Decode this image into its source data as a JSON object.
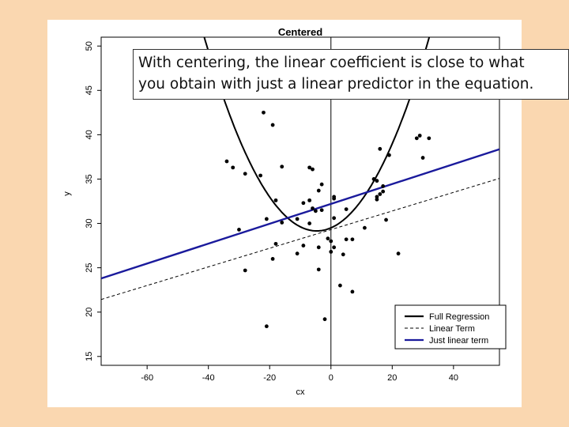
{
  "chart_data": {
    "type": "scatter",
    "title": "Centered",
    "xlabel": "cx",
    "ylabel": "y",
    "xlim": [
      -75,
      55
    ],
    "ylim": [
      14,
      51
    ],
    "xticks": [
      "-60",
      "-40",
      "-20",
      "0",
      "20",
      "40"
    ],
    "yticks": [
      "15",
      "20",
      "25",
      "30",
      "35",
      "40",
      "45",
      "50"
    ],
    "points": [
      [
        -34,
        37.0
      ],
      [
        -32,
        36.3
      ],
      [
        -30,
        29.3
      ],
      [
        -28,
        35.6
      ],
      [
        -28,
        24.7
      ],
      [
        -23,
        35.4
      ],
      [
        -22,
        42.5
      ],
      [
        -21,
        30.5
      ],
      [
        -21,
        18.4
      ],
      [
        -19,
        41.1
      ],
      [
        -19,
        26.0
      ],
      [
        -18,
        32.6
      ],
      [
        -18,
        27.7
      ],
      [
        -16,
        36.4
      ],
      [
        -16,
        30.1
      ],
      [
        -11,
        30.5
      ],
      [
        -11,
        26.6
      ],
      [
        -9,
        32.3
      ],
      [
        -9,
        27.5
      ],
      [
        -7,
        36.3
      ],
      [
        -7,
        32.6
      ],
      [
        -7,
        30.0
      ],
      [
        -6,
        36.1
      ],
      [
        -6,
        31.7
      ],
      [
        -5,
        31.4
      ],
      [
        -4,
        33.7
      ],
      [
        -4,
        27.3
      ],
      [
        -4,
        24.8
      ],
      [
        -3,
        34.4
      ],
      [
        -3,
        31.5
      ],
      [
        -2,
        19.2
      ],
      [
        -1,
        28.3
      ],
      [
        0,
        28.0
      ],
      [
        0,
        26.8
      ],
      [
        1,
        33.0
      ],
      [
        1,
        32.8
      ],
      [
        1,
        30.6
      ],
      [
        1,
        27.3
      ],
      [
        3,
        23.0
      ],
      [
        4,
        26.5
      ],
      [
        5,
        31.6
      ],
      [
        5,
        28.2
      ],
      [
        7,
        28.2
      ],
      [
        7,
        22.3
      ],
      [
        11,
        29.5
      ],
      [
        14,
        35.0
      ],
      [
        15,
        34.8
      ],
      [
        15,
        33.0
      ],
      [
        15,
        32.7
      ],
      [
        16,
        33.3
      ],
      [
        16,
        38.4
      ],
      [
        17,
        33.6
      ],
      [
        17,
        34.2
      ],
      [
        18,
        30.4
      ],
      [
        19,
        37.7
      ],
      [
        22,
        26.6
      ],
      [
        28,
        39.6
      ],
      [
        29,
        39.9
      ],
      [
        30,
        37.4
      ],
      [
        32,
        39.6
      ]
    ],
    "series": [
      {
        "kind": "curve",
        "a": 0.0162,
        "b": 0.15,
        "c": 29.5,
        "color": "#000000",
        "dash": "none",
        "width": 2
      },
      {
        "kind": "line",
        "slope": 0.105,
        "intercept": 29.3,
        "color": "#000000",
        "dash": "4 3",
        "width": 1
      },
      {
        "kind": "line",
        "slope": 0.112,
        "intercept": 32.2,
        "color": "#1a1a9c",
        "dash": "none",
        "width": 2.4
      }
    ],
    "legend": {
      "placement": "bottom-right",
      "entries": [
        {
          "label": "Full Regression",
          "color": "#000000",
          "dash": "none"
        },
        {
          "label": "Linear Term",
          "color": "#000000",
          "dash": "4 3"
        },
        {
          "label": "Just linear term",
          "color": "#1a1a9c",
          "dash": "none"
        }
      ]
    },
    "grid": false
  },
  "callout": {
    "line1": "With centering, the linear coefficient is close to what",
    "line2": "you obtain with just a linear predictor in the equation."
  }
}
